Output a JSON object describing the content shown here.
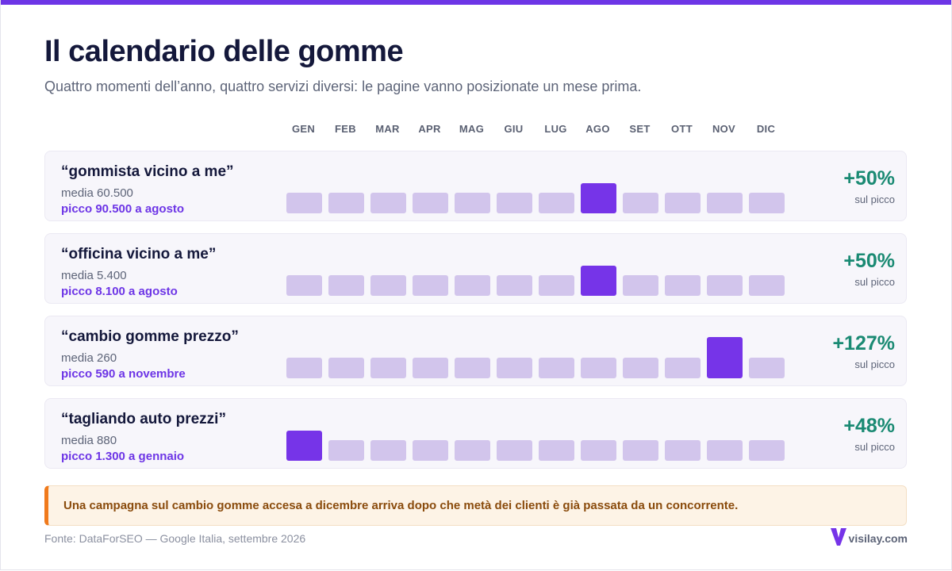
{
  "header": {
    "title": "Il calendario delle gomme",
    "subtitle": "Quattro momenti dell’anno, quattro servizi diversi: le pagine vanno posizionate un mese prima."
  },
  "months": [
    "GEN",
    "FEB",
    "MAR",
    "APR",
    "MAG",
    "GIU",
    "LUG",
    "AGO",
    "SET",
    "OTT",
    "NOV",
    "DIC"
  ],
  "rows": [
    {
      "keyword": "“gommista vicino a me”",
      "avg": "media 60.500",
      "peak": "picco 90.500 a agosto",
      "pct": "+50%",
      "pct_label": "sul picco"
    },
    {
      "keyword": "“officina vicino a me”",
      "avg": "media 5.400",
      "peak": "picco 8.100 a agosto",
      "pct": "+50%",
      "pct_label": "sul picco"
    },
    {
      "keyword": "“cambio gomme prezzo”",
      "avg": "media 260",
      "peak": "picco 590 a novembre",
      "pct": "+127%",
      "pct_label": "sul picco"
    },
    {
      "keyword": "“tagliando auto prezzi”",
      "avg": "media 880",
      "peak": "picco 1.300 a gennaio",
      "pct": "+48%",
      "pct_label": "sul picco"
    }
  ],
  "chart_data": {
    "type": "heatmap",
    "categories": [
      "GEN",
      "FEB",
      "MAR",
      "APR",
      "MAG",
      "GIU",
      "LUG",
      "AGO",
      "SET",
      "OTT",
      "NOV",
      "DIC"
    ],
    "series": [
      {
        "name": "“gommista vicino a me”",
        "average": 60500,
        "peak": 90500,
        "peak_month": "AGO",
        "values": [
          60500,
          60500,
          60500,
          60500,
          60500,
          60500,
          60500,
          90500,
          60500,
          60500,
          60500,
          60500
        ]
      },
      {
        "name": "“officina vicino a me”",
        "average": 5400,
        "peak": 8100,
        "peak_month": "AGO",
        "values": [
          5400,
          5400,
          5400,
          5400,
          5400,
          5400,
          5400,
          8100,
          5400,
          5400,
          5400,
          5400
        ]
      },
      {
        "name": "“cambio gomme prezzo”",
        "average": 260,
        "peak": 590,
        "peak_month": "NOV",
        "values": [
          260,
          260,
          260,
          260,
          260,
          260,
          260,
          260,
          260,
          260,
          590,
          260
        ]
      },
      {
        "name": "“tagliando auto prezzi”",
        "average": 880,
        "peak": 1300,
        "peak_month": "GEN",
        "values": [
          1300,
          880,
          880,
          880,
          880,
          880,
          880,
          880,
          880,
          880,
          880,
          880
        ]
      }
    ],
    "colors": {
      "average": "#d2c5ec",
      "peak": "#7634e8",
      "increase": "#1a8a73"
    }
  },
  "note": "Una campagna sul cambio gomme accesa a dicembre arriva dopo che metà dei clienti è già passata da un concorrente.",
  "footer": {
    "source": "Fonte: DataForSEO — Google Italia, settembre 2026",
    "brand": "visilay.com",
    "brand_icon": "v-logo-icon"
  }
}
